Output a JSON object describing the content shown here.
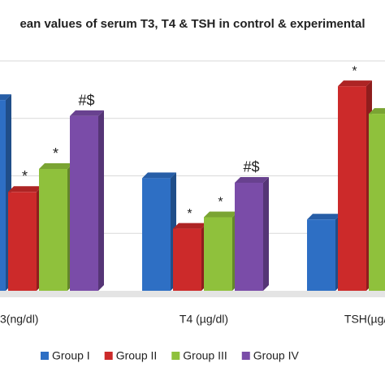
{
  "chart_data": {
    "type": "bar",
    "title": "ean values of serum T3, T4 & TSH in control & experimental",
    "categories": [
      "3(ng/dl)",
      "T4 (µg/dl)",
      "TSH(µg/d"
    ],
    "series": [
      {
        "name": "Group I",
        "color": "#2e6fc4",
        "values": [
          83,
          49,
          31
        ],
        "labels": [
          null,
          null,
          null
        ]
      },
      {
        "name": "Group II",
        "color": "#cc2a2a",
        "values": [
          43,
          27,
          89
        ],
        "labels": [
          "*",
          "*",
          "*"
        ]
      },
      {
        "name": "Group III",
        "color": "#8fc13c",
        "values": [
          53,
          32,
          77
        ],
        "labels": [
          "*",
          "*",
          null
        ]
      },
      {
        "name": "Group IV",
        "color": "#7a4ca8",
        "values": [
          76,
          47,
          null
        ],
        "labels": [
          "#$",
          "#$",
          null
        ]
      }
    ],
    "ylim": [
      0,
      100
    ],
    "grid": true
  }
}
